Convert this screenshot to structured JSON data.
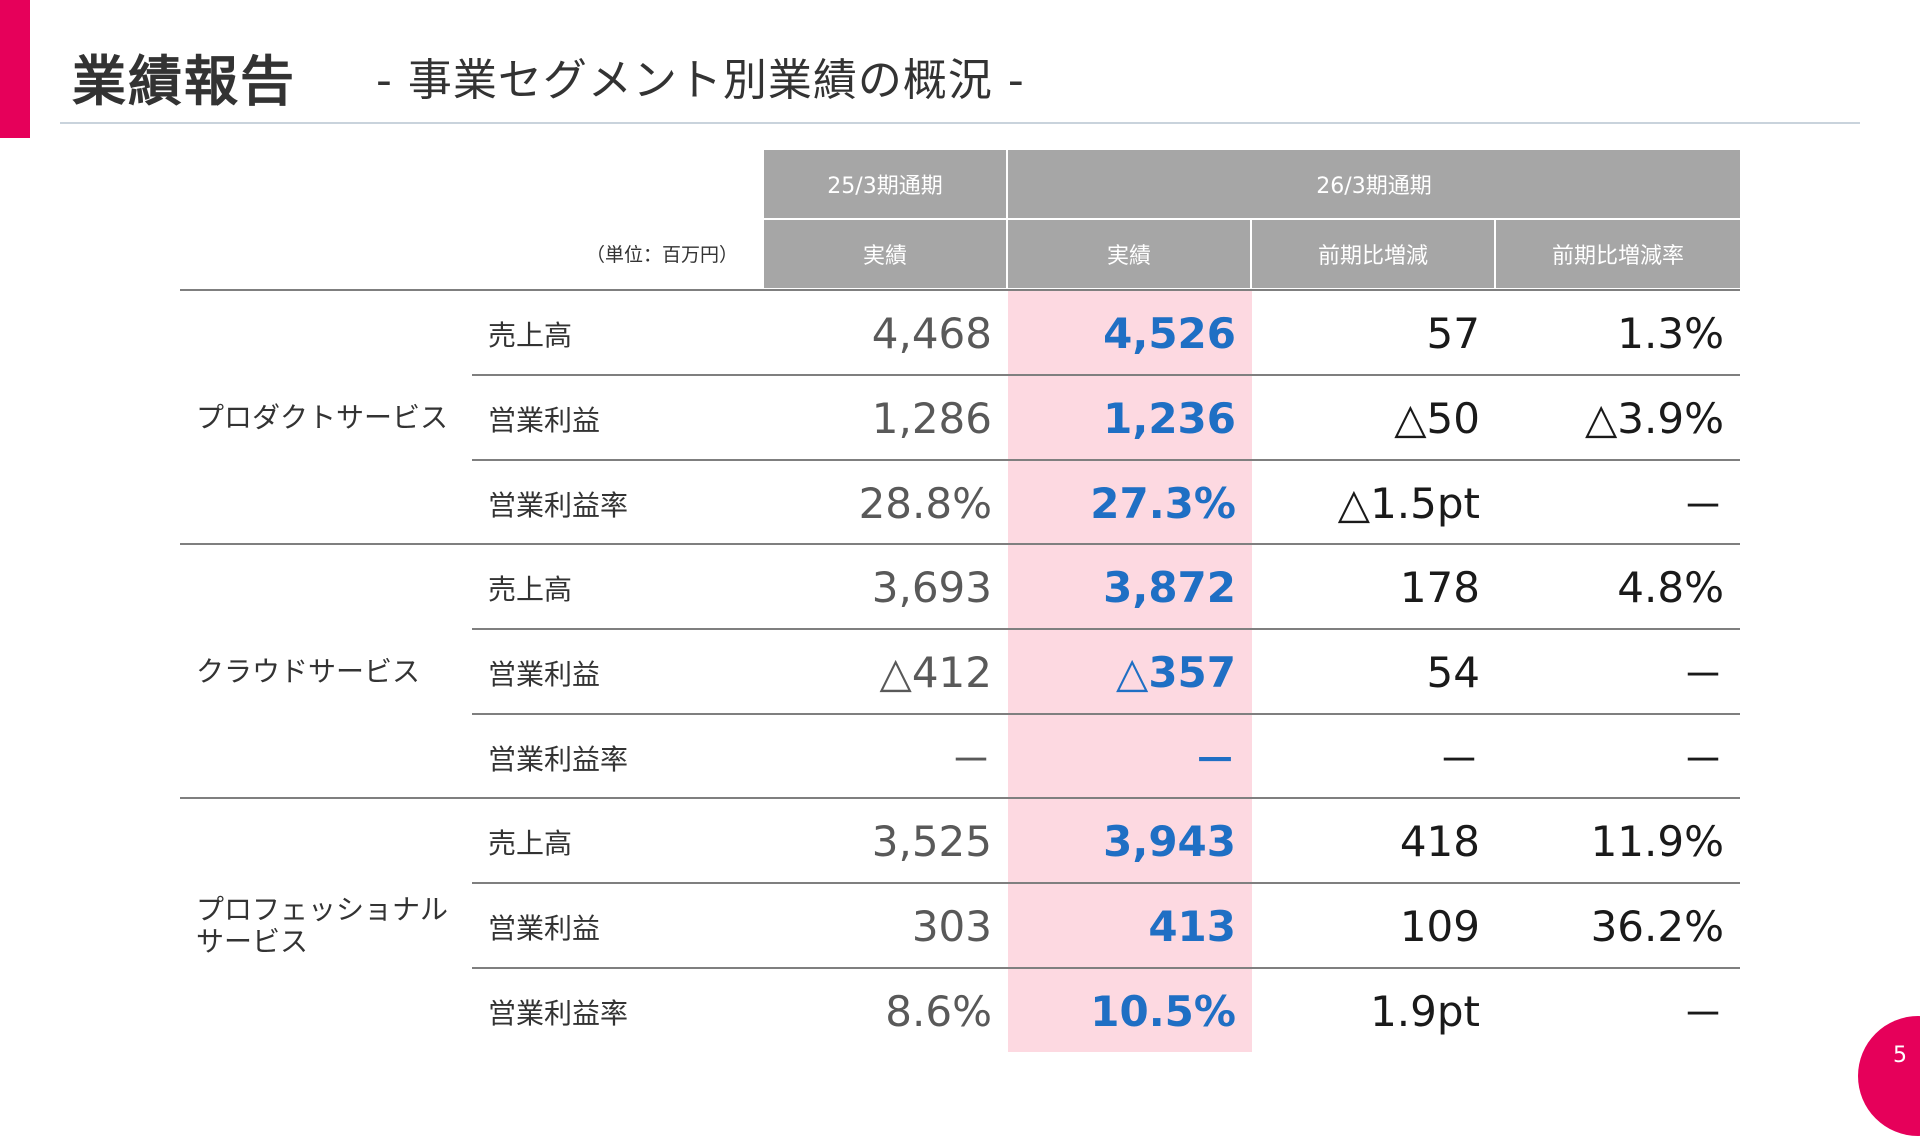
{
  "title": {
    "main": "業績報告",
    "sub": "- 事業セグメント別業績の概況 -"
  },
  "table": {
    "unit": "（単位：百万円）",
    "period_prev": "25/3期通期",
    "period_cur": "26/3期通期",
    "col_prev": "実績",
    "col_cur": "実績",
    "col_diff": "前期比増減",
    "col_rate": "前期比増減率",
    "segments": [
      {
        "name": "プロダクトサービス",
        "rows": [
          {
            "metric": "売上高",
            "prev": "4,468",
            "cur": "4,526",
            "diff": "57",
            "rate": "1.3%"
          },
          {
            "metric": "営業利益",
            "prev": "1,286",
            "cur": "1,236",
            "diff": "△50",
            "rate": "△3.9%"
          },
          {
            "metric": "営業利益率",
            "prev": "28.8%",
            "cur": "27.3%",
            "diff": "△1.5pt",
            "rate": "－"
          }
        ]
      },
      {
        "name": "クラウドサービス",
        "rows": [
          {
            "metric": "売上高",
            "prev": "3,693",
            "cur": "3,872",
            "diff": "178",
            "rate": "4.8%"
          },
          {
            "metric": "営業利益",
            "prev": "△412",
            "cur": "△357",
            "diff": "54",
            "rate": "－"
          },
          {
            "metric": "営業利益率",
            "prev": "－",
            "cur": "－",
            "diff": "－",
            "rate": "－"
          }
        ]
      },
      {
        "name_line1": "プロフェッショナル",
        "name_line2": "サービス",
        "rows": [
          {
            "metric": "売上高",
            "prev": "3,525",
            "cur": "3,943",
            "diff": "418",
            "rate": "11.9%"
          },
          {
            "metric": "営業利益",
            "prev": "303",
            "cur": "413",
            "diff": "109",
            "rate": "36.2%"
          },
          {
            "metric": "営業利益率",
            "prev": "8.6%",
            "cur": "10.5%",
            "diff": "1.9pt",
            "rate": "－"
          }
        ]
      }
    ]
  },
  "page_number": "5",
  "colors": {
    "accent": "#e6005a",
    "header_gray": "#a6a6a6",
    "highlight": "#fdd9e1",
    "current_value": "#1f6fc4"
  }
}
